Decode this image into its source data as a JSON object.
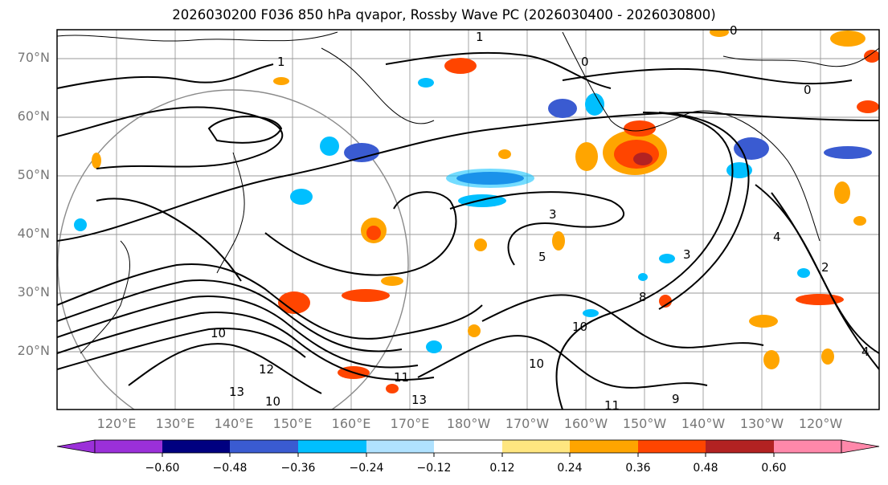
{
  "title": "2026030200 F036 850 hPa qvapor, Rossby Wave PC (2026030400 - 2026030800)",
  "map": {
    "lat_labels": [
      "70°N",
      "60°N",
      "50°N",
      "40°N",
      "30°N",
      "20°N"
    ],
    "lon_labels": [
      "120°E",
      "130°E",
      "140°E",
      "150°E",
      "160°E",
      "170°E",
      "180°W",
      "170°W",
      "160°W",
      "150°W",
      "140°W",
      "130°W",
      "120°W"
    ],
    "contour_labels": [
      "1",
      "1",
      "0",
      "0",
      "0",
      "3",
      "5",
      "3",
      "4",
      "2",
      "8",
      "10",
      "12",
      "13",
      "11",
      "13",
      "10",
      "9",
      "11",
      "4",
      "10",
      "10"
    ]
  },
  "colorbar": {
    "ticks": [
      "−0.60",
      "−0.48",
      "−0.36",
      "−0.24",
      "−0.12",
      "0.12",
      "0.24",
      "0.36",
      "0.48",
      "0.60"
    ],
    "colors": [
      "#9b30d9",
      "#000080",
      "#3a5bd1",
      "#00bfff",
      "#b0e2ff",
      "#ffffff",
      "#ffe680",
      "#ffa500",
      "#ff4500",
      "#b22222",
      "#ff88aa"
    ]
  }
}
